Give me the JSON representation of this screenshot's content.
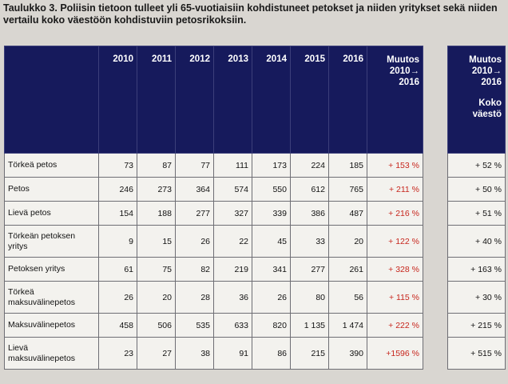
{
  "caption": "Taulukko 3. Poliisin tietoon tulleet yli 65-vuotiaisiin kohdistuneet petokset ja niiden yritykset sekä niiden vertailu koko väestöön kohdistuviin petosrikoksiin.",
  "columns": [
    "2010",
    "2011",
    "2012",
    "2013",
    "2014",
    "2015",
    "2016"
  ],
  "change_header": [
    "Muutos",
    "2010→",
    "2016"
  ],
  "side_header": [
    "Muutos",
    "2010→",
    "2016",
    "",
    "Koko",
    "väestö"
  ],
  "rows": [
    {
      "label": "Törkeä petos",
      "values": [
        "73",
        "87",
        "77",
        "111",
        "173",
        "224",
        "185"
      ],
      "change": "+ 153 %",
      "total_change": "+ 52 %"
    },
    {
      "label": "Petos",
      "values": [
        "246",
        "273",
        "364",
        "574",
        "550",
        "612",
        "765"
      ],
      "change": "+ 211 %",
      "total_change": "+ 50 %"
    },
    {
      "label": "Lievä petos",
      "values": [
        "154",
        "188",
        "277",
        "327",
        "339",
        "386",
        "487"
      ],
      "change": "+ 216 %",
      "total_change": "+ 51 %"
    },
    {
      "label": "Törkeän petoksen yritys",
      "values": [
        "9",
        "15",
        "26",
        "22",
        "45",
        "33",
        "20"
      ],
      "change": "+ 122 %",
      "total_change": "+ 40 %"
    },
    {
      "label": "Petoksen yritys",
      "values": [
        "61",
        "75",
        "82",
        "219",
        "341",
        "277",
        "261"
      ],
      "change": "+ 328 %",
      "total_change": "+ 163 %"
    },
    {
      "label": "Törkeä maksuvälinepetos",
      "values": [
        "26",
        "20",
        "28",
        "36",
        "26",
        "80",
        "56"
      ],
      "change": "+ 115 %",
      "total_change": "+ 30 %"
    },
    {
      "label": "Maksuvälinepetos",
      "values": [
        "458",
        "506",
        "535",
        "633",
        "820",
        "1 135",
        "1 474"
      ],
      "change": "+ 222 %",
      "total_change": "+ 215 %"
    },
    {
      "label": "Lievä maksuvälinepetos",
      "values": [
        "23",
        "27",
        "38",
        "91",
        "86",
        "215",
        "390"
      ],
      "change": "+1596 %",
      "total_change": "+ 515 %"
    }
  ],
  "colors": {
    "header_bg": "#161a5c",
    "change_text": "#c7261d"
  }
}
